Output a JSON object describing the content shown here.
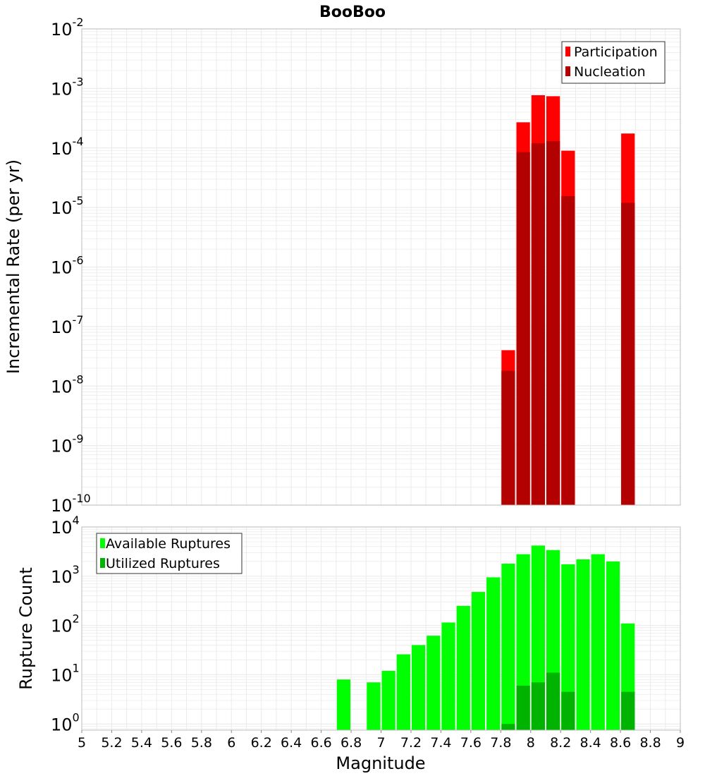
{
  "colors": {
    "participation": "#ff0000",
    "nucleation": "#b30000",
    "available": "#00ff00",
    "utilized": "#00b300",
    "grid": "#ebebeb",
    "frame": "#bdbdbd"
  },
  "chart_data": [
    {
      "type": "bar",
      "title": "BooBoo",
      "xlabel": "",
      "ylabel": "Incremental Rate (per yr)",
      "y_scale": "log",
      "ylim": [
        1e-10,
        0.01
      ],
      "xlim": [
        5,
        9
      ],
      "bar_width": 0.1,
      "legend": {
        "placement": "top-right",
        "entries": [
          "Participation",
          "Nucleation"
        ]
      },
      "y_tick_exponents": [
        "-2",
        "-3",
        "-4",
        "-5",
        "-6",
        "-7",
        "-8",
        "-9",
        "-10"
      ],
      "series": [
        {
          "name": "Participation",
          "x": [
            7.85,
            7.95,
            8.05,
            8.15,
            8.25,
            8.65
          ],
          "values": [
            4e-08,
            0.00027,
            0.00077,
            0.00074,
            9e-05,
            0.000175
          ]
        },
        {
          "name": "Nucleation",
          "x": [
            7.85,
            7.95,
            8.05,
            8.15,
            8.25,
            8.65
          ],
          "values": [
            1.8e-08,
            8.5e-05,
            0.00012,
            0.00013,
            1.55e-05,
            1.2e-05
          ]
        }
      ]
    },
    {
      "type": "bar",
      "title": "",
      "xlabel": "Magnitude",
      "ylabel": "Rupture Count",
      "y_scale": "log",
      "ylim": [
        0.75,
        10000
      ],
      "xlim": [
        5,
        9
      ],
      "bar_width": 0.1,
      "legend": {
        "placement": "top-left",
        "entries": [
          "Available Ruptures",
          "Utilized Ruptures"
        ]
      },
      "y_tick_exponents": [
        "4",
        "3",
        "2",
        "1",
        "0"
      ],
      "x_tick_labels": [
        "5",
        "5.2",
        "5.4",
        "5.6",
        "5.8",
        "6",
        "6.2",
        "6.4",
        "6.6",
        "6.8",
        "7",
        "7.2",
        "7.4",
        "7.6",
        "7.8",
        "8",
        "8.2",
        "8.4",
        "8.6",
        "8.8",
        "9"
      ],
      "series": [
        {
          "name": "Available Ruptures",
          "x": [
            6.75,
            6.95,
            7.05,
            7.15,
            7.25,
            7.35,
            7.45,
            7.55,
            7.65,
            7.75,
            7.85,
            7.95,
            8.05,
            8.15,
            8.25,
            8.35,
            8.45,
            8.55,
            8.65
          ],
          "values": [
            8,
            7,
            12,
            26,
            40,
            62,
            115,
            250,
            480,
            950,
            1800,
            2800,
            4200,
            3400,
            1750,
            2200,
            2800,
            2000,
            110
          ]
        },
        {
          "name": "Utilized Ruptures",
          "x": [
            7.85,
            7.95,
            8.05,
            8.15,
            8.25,
            8.65
          ],
          "values": [
            1,
            6,
            7,
            11,
            4.5,
            4.5
          ]
        }
      ]
    }
  ]
}
